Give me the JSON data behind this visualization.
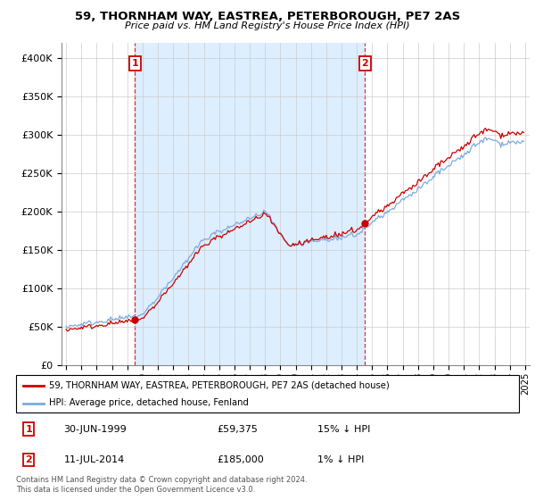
{
  "title": "59, THORNHAM WAY, EASTREA, PETERBOROUGH, PE7 2AS",
  "subtitle": "Price paid vs. HM Land Registry's House Price Index (HPI)",
  "legend_entry1": "59, THORNHAM WAY, EASTREA, PETERBOROUGH, PE7 2AS (detached house)",
  "legend_entry2": "HPI: Average price, detached house, Fenland",
  "sale1_date": "30-JUN-1999",
  "sale1_price": "£59,375",
  "sale1_hpi": "15% ↓ HPI",
  "sale2_date": "11-JUL-2014",
  "sale2_price": "£185,000",
  "sale2_hpi": "1% ↓ HPI",
  "footnote": "Contains HM Land Registry data © Crown copyright and database right 2024.\nThis data is licensed under the Open Government Licence v3.0.",
  "sale_color": "#cc0000",
  "hpi_color": "#7aacdc",
  "shade_color": "#ddeeff",
  "background_color": "#ffffff",
  "ylim": [
    0,
    420000
  ],
  "yticks": [
    0,
    50000,
    100000,
    150000,
    200000,
    250000,
    300000,
    350000,
    400000
  ],
  "sale1_year": 1999.5,
  "sale1_value": 59375,
  "sale2_year": 2014.54,
  "sale2_value": 185000,
  "xmin": 1995.0,
  "xmax": 2025.0
}
